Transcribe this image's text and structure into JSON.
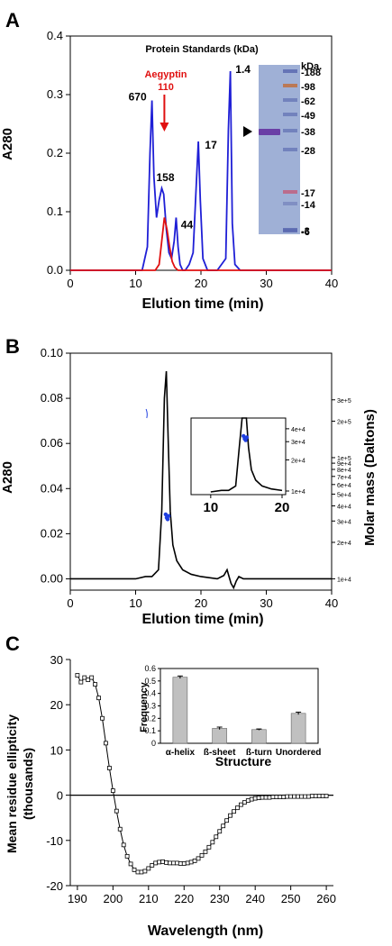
{
  "panels": {
    "a": {
      "letter": "A",
      "xlabel": "Elution time (min)",
      "ylabel": "A280",
      "title": "Protein Standards (kDa)",
      "aegyptin_label": "Aegyptin",
      "aegyptin_kda": "110",
      "gel_unit": "kDa.",
      "gel_markers": [
        "-188",
        "-98",
        "-62",
        "-49",
        "-38",
        "-28",
        "-17",
        "-14",
        "-6",
        "-3"
      ]
    },
    "b": {
      "letter": "B",
      "xlabel": "Elution time (min)",
      "ylabel": "A280",
      "y2label": "Molar mass (Daltons)"
    },
    "c": {
      "letter": "C",
      "xlabel": "Wavelength (nm)",
      "ylabel_line1": "Mean residue ellipticity",
      "ylabel_line2": "(thousands)",
      "inset_xlabel": "Structure",
      "inset_ylabel": "Frequency"
    }
  },
  "colors": {
    "standards": "#1f1fd6",
    "aegyptin": "#e01010",
    "trace": "#000000",
    "molar_mass": "#1f3fe0",
    "bar": "#c0c0c0",
    "gel_bg": "#9fb0d6",
    "gel_band": "#6a3fa6"
  },
  "chart_data": [
    {
      "id": "A",
      "type": "line",
      "title": "Protein Standards (kDa)",
      "xlabel": "Elution time (min)",
      "ylabel": "A280",
      "xlim": [
        0,
        40
      ],
      "ylim": [
        0,
        0.4
      ],
      "xticks": [
        0,
        10,
        20,
        30,
        40
      ],
      "yticks": [
        0.0,
        0.1,
        0.2,
        0.3,
        0.4
      ],
      "series": [
        {
          "x": [
            0,
            11,
            11.8,
            12.2,
            12.5,
            12.8,
            13.2,
            13.6,
            14.0,
            14.3,
            14.7,
            15.1,
            15.5,
            15.9,
            16.2,
            16.5,
            16.8,
            17.2,
            17.6,
            18.2,
            18.8,
            19.3,
            19.6,
            19.9,
            20.3,
            21.0,
            22.5,
            23.8,
            24.2,
            24.5,
            24.8,
            25.2,
            26,
            30,
            40
          ],
          "y": [
            0,
            0,
            0.04,
            0.2,
            0.29,
            0.16,
            0.09,
            0.12,
            0.14,
            0.13,
            0.07,
            0.03,
            0.02,
            0.05,
            0.09,
            0.04,
            0.01,
            0.0,
            0.0,
            0.01,
            0.03,
            0.15,
            0.22,
            0.12,
            0.02,
            0.0,
            0.0,
            0.02,
            0.24,
            0.34,
            0.08,
            0.01,
            0,
            0,
            0
          ]
        },
        {
          "x": [
            0,
            13.0,
            13.6,
            14.0,
            14.4,
            14.8,
            15.2,
            15.6,
            16.0,
            16.5,
            17.5,
            40
          ],
          "y": [
            0,
            0,
            0.01,
            0.05,
            0.09,
            0.07,
            0.04,
            0.015,
            0.005,
            0.0,
            0,
            0
          ]
        }
      ],
      "annotations": [
        {
          "text": "670",
          "x": 12.5,
          "y": 0.29
        },
        {
          "text": "158",
          "x": 14.0,
          "y": 0.14
        },
        {
          "text": "44",
          "x": 16.2,
          "y": 0.09
        },
        {
          "text": "17",
          "x": 19.6,
          "y": 0.22
        },
        {
          "text": "1.4",
          "x": 24.5,
          "y": 0.34
        }
      ]
    },
    {
      "id": "B",
      "type": "line",
      "xlabel": "Elution time (min)",
      "ylabel": "A280",
      "y2label": "Molar mass (Daltons)",
      "xlim": [
        0,
        40
      ],
      "ylim": [
        -0.005,
        0.1
      ],
      "xticks": [
        0,
        10,
        20,
        30,
        40
      ],
      "yticks": [
        0.0,
        0.02,
        0.04,
        0.06,
        0.08,
        0.1
      ],
      "y2ticks": [
        "1e+4",
        "2e+4",
        "3e+4",
        "4e+4",
        "5e+4",
        "6e+4",
        "7e+4",
        "8e+4",
        "9e+4",
        "1e+5",
        "2e+5",
        "3e+5"
      ],
      "series": [
        {
          "x": [
            0,
            10,
            11.5,
            12.5,
            13.5,
            14.0,
            14.4,
            14.7,
            15.0,
            15.3,
            15.7,
            16.3,
            17.2,
            18.5,
            20,
            22.5,
            23.5,
            24.0,
            24.3,
            24.6,
            25.0,
            25.4,
            25.8,
            26.5,
            30,
            40
          ],
          "y": [
            0,
            0,
            0.001,
            0.001,
            0.004,
            0.03,
            0.08,
            0.092,
            0.06,
            0.03,
            0.015,
            0.008,
            0.004,
            0.002,
            0.001,
            0.0,
            0.0015,
            0.004,
            0.001,
            -0.002,
            -0.004,
            -0.001,
            0.001,
            0.0,
            0,
            0
          ]
        }
      ],
      "molar_mass_points": {
        "x": [
          14.6,
          14.75,
          14.9,
          15.05
        ],
        "mass": [
          34000,
          32000,
          31000,
          33000
        ]
      },
      "inset": {
        "xlim": [
          8,
          20
        ],
        "xticks": [
          10,
          20
        ],
        "y2ticks": [
          "1e+4",
          "2e+4",
          "3e+4",
          "4e+4"
        ]
      }
    },
    {
      "id": "C",
      "type": "line",
      "xlabel": "Wavelength (nm)",
      "ylabel": "Mean residue ellipticity (thousands)",
      "xlim": [
        188,
        262
      ],
      "ylim": [
        -20,
        30
      ],
      "xticks": [
        190,
        200,
        210,
        220,
        230,
        240,
        250,
        260
      ],
      "yticks": [
        -20,
        -10,
        0,
        10,
        20,
        30
      ],
      "series": [
        {
          "x": [
            190,
            191,
            192,
            193,
            194,
            195,
            196,
            197,
            198,
            199,
            200,
            201,
            202,
            203,
            204,
            205,
            206,
            207,
            208,
            209,
            210,
            211,
            212,
            213,
            214,
            215,
            216,
            217,
            218,
            219,
            220,
            221,
            222,
            223,
            224,
            225,
            226,
            227,
            228,
            229,
            230,
            231,
            232,
            233,
            234,
            235,
            236,
            237,
            238,
            239,
            240,
            241,
            242,
            243,
            244,
            245,
            246,
            247,
            248,
            249,
            250,
            251,
            252,
            253,
            254,
            255,
            256,
            257,
            258,
            259,
            260
          ],
          "y": [
            26.5,
            25.0,
            26.0,
            25.5,
            26.0,
            24.5,
            21.5,
            17.0,
            11.5,
            6.0,
            1.0,
            -3.5,
            -7.5,
            -11.0,
            -13.5,
            -15.2,
            -16.5,
            -17.0,
            -17.0,
            -16.8,
            -16.2,
            -15.5,
            -15.0,
            -14.8,
            -14.7,
            -14.9,
            -15.0,
            -15.0,
            -15.0,
            -15.1,
            -15.1,
            -15.0,
            -14.8,
            -14.5,
            -14.0,
            -13.3,
            -12.5,
            -11.5,
            -10.4,
            -9.2,
            -8.0,
            -6.8,
            -5.6,
            -4.5,
            -3.6,
            -2.8,
            -2.1,
            -1.6,
            -1.2,
            -0.9,
            -0.7,
            -0.6,
            -0.5,
            -0.5,
            -0.5,
            -0.4,
            -0.4,
            -0.4,
            -0.4,
            -0.3,
            -0.3,
            -0.3,
            -0.3,
            -0.3,
            -0.3,
            -0.3,
            -0.2,
            -0.2,
            -0.2,
            -0.2,
            -0.2
          ]
        }
      ],
      "inset": {
        "type": "bar",
        "xlabel": "Structure",
        "ylabel": "Frequency",
        "categories": [
          "α-helix",
          "ß-sheet",
          "ß-turn",
          "Unordered"
        ],
        "values": [
          0.53,
          0.12,
          0.11,
          0.24
        ],
        "errors": [
          0.01,
          0.01,
          0.005,
          0.01
        ],
        "ylim": [
          0,
          0.6
        ],
        "yticks": [
          0,
          0.1,
          0.2,
          0.3,
          0.4,
          0.5,
          0.6
        ]
      }
    }
  ]
}
